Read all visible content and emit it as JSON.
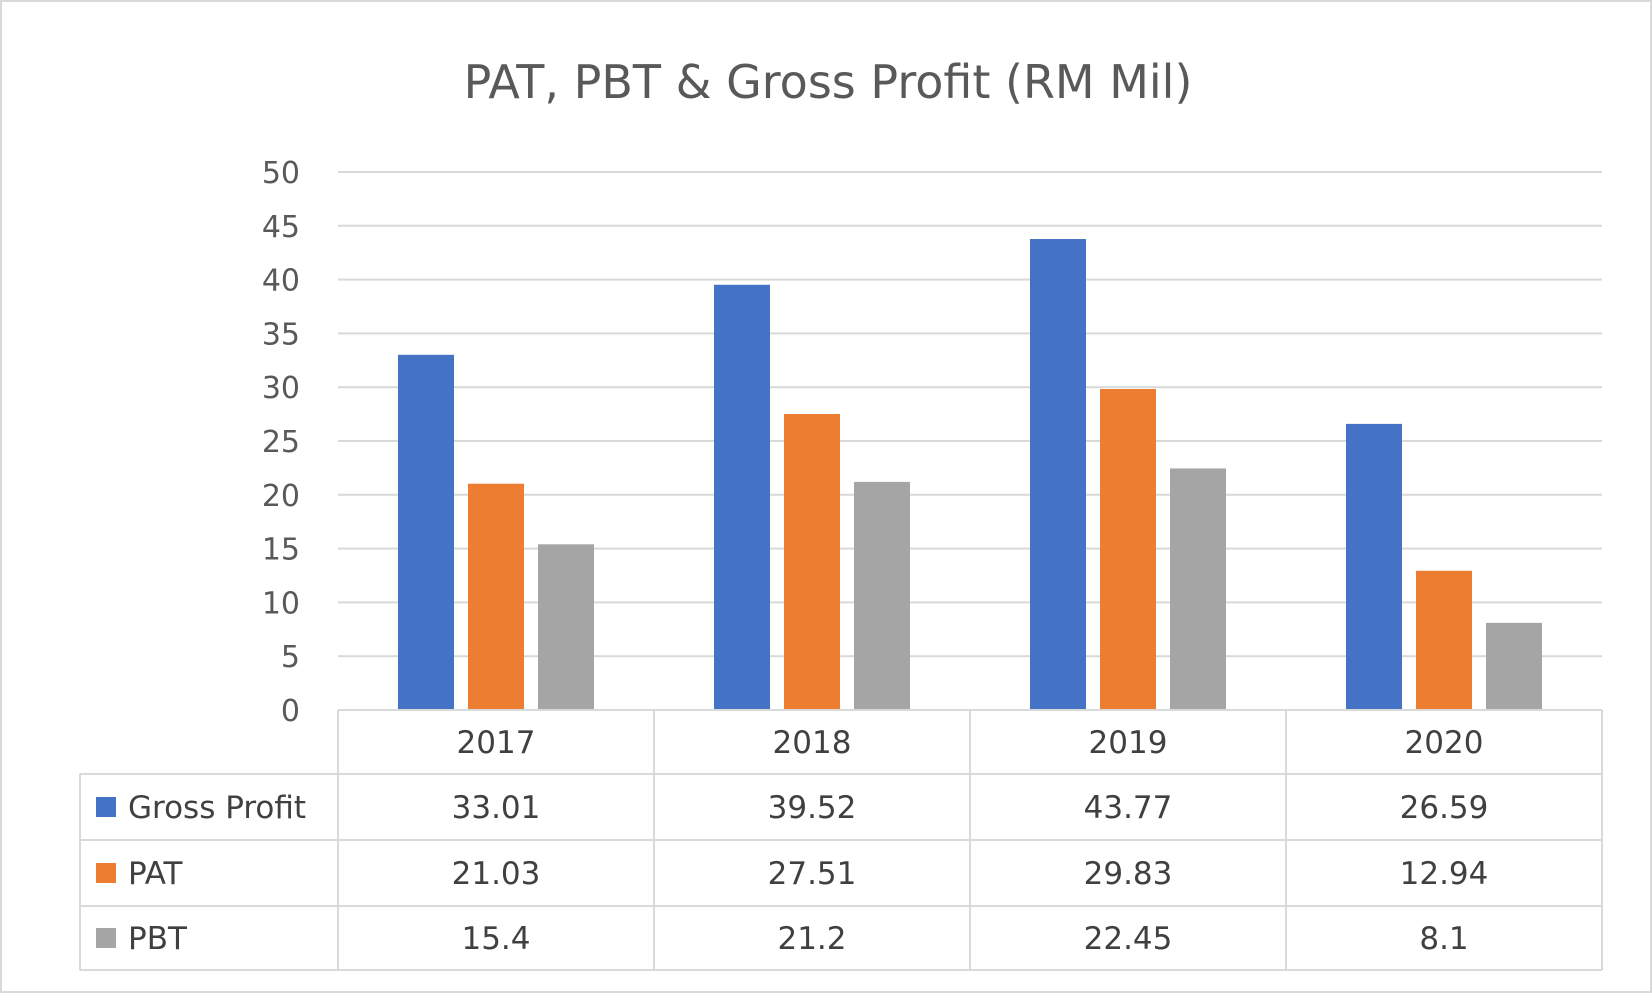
{
  "chart_data": {
    "type": "bar",
    "title": "PAT, PBT & Gross Profit (RM Mil)",
    "xlabel": "",
    "ylabel": "",
    "categories": [
      "2017",
      "2018",
      "2019",
      "2020"
    ],
    "ylim": [
      0,
      50
    ],
    "yticks": [
      "0",
      "5",
      "10",
      "15",
      "20",
      "25",
      "30",
      "35",
      "40",
      "45",
      "50"
    ],
    "grid": true,
    "legend": "data-table",
    "series": [
      {
        "name": "Gross Profit",
        "color": "#4472c4",
        "values": [
          33.01,
          39.52,
          43.77,
          26.59
        ],
        "labels": [
          "33.01",
          "39.52",
          "43.77",
          "26.59"
        ]
      },
      {
        "name": "PAT",
        "color": "#ed7d31",
        "values": [
          21.03,
          27.51,
          29.83,
          12.94
        ],
        "labels": [
          "21.03",
          "27.51",
          "29.83",
          "12.94"
        ]
      },
      {
        "name": "PBT",
        "color": "#a5a5a5",
        "values": [
          15.4,
          21.2,
          22.45,
          8.1
        ],
        "labels": [
          "15.4",
          "21.2",
          "22.45",
          "8.1"
        ]
      }
    ]
  }
}
